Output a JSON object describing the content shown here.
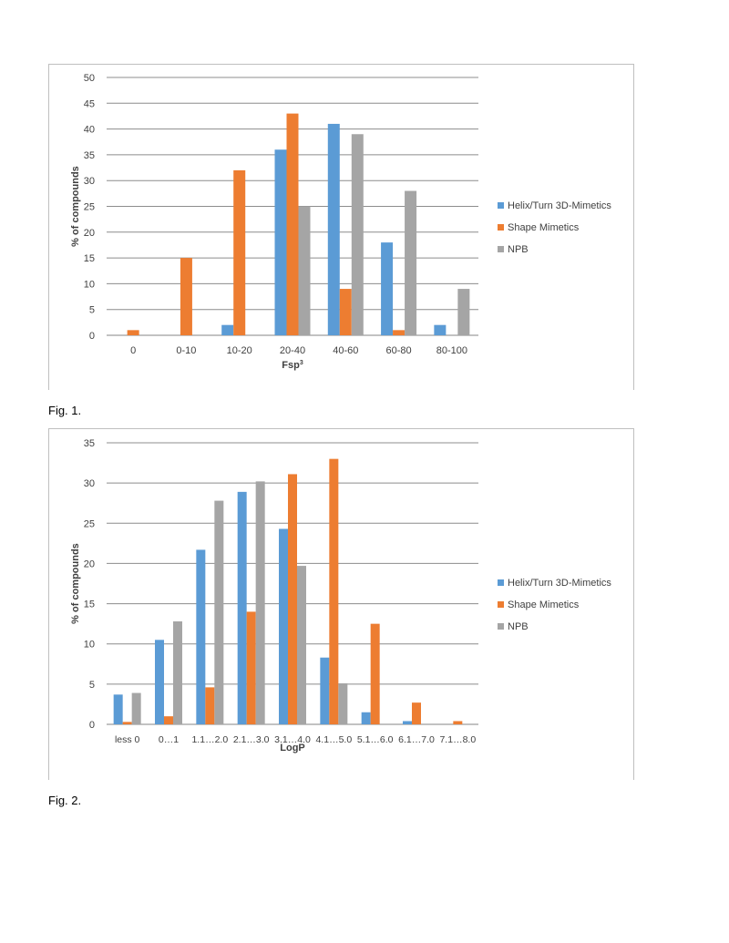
{
  "chart_data": [
    {
      "type": "bar",
      "categories": [
        "0",
        "0-10",
        "10-20",
        "20-40",
        "40-60",
        "60-80",
        "80-100"
      ],
      "series": [
        {
          "name": "Helix/Turn 3D-Mimetics",
          "values": [
            0,
            0,
            2,
            36,
            41,
            18,
            2
          ]
        },
        {
          "name": "Shape Mimetics",
          "values": [
            1,
            15,
            32,
            43,
            9,
            1,
            0
          ]
        },
        {
          "name": "NPB",
          "values": [
            0,
            0,
            0,
            25,
            39,
            28,
            9
          ]
        }
      ],
      "ylabel": "% of compounds",
      "xlabel": "Fsp",
      "xlabel_sup": "3",
      "ylim": [
        0,
        50
      ],
      "yticks": [
        "0",
        "5",
        "10",
        "15",
        "20",
        "25",
        "30",
        "35",
        "40",
        "45",
        "50"
      ],
      "legend": "right",
      "grid": true
    },
    {
      "type": "bar",
      "categories": [
        "less 0",
        "0…1",
        "1.1…2.0",
        "2.1…3.0",
        "3.1…4.0",
        "4.1…5.0",
        "5.1…6.0",
        "6.1…7.0",
        "7.1…8.0"
      ],
      "series": [
        {
          "name": "Helix/Turn 3D-Mimetics",
          "values": [
            3.7,
            10.5,
            21.7,
            28.9,
            24.3,
            8.3,
            1.5,
            0.4,
            0
          ]
        },
        {
          "name": "Shape Mimetics",
          "values": [
            0.3,
            1,
            4.6,
            14,
            31.1,
            33,
            12.5,
            2.7,
            0.4
          ]
        },
        {
          "name": "NPB",
          "values": [
            3.9,
            12.8,
            27.8,
            30.2,
            19.7,
            5.1,
            0,
            0,
            0
          ]
        }
      ],
      "ylabel": "% of compounds",
      "xlabel": "LogP",
      "ylim": [
        0,
        35
      ],
      "yticks": [
        "0",
        "5",
        "10",
        "15",
        "20",
        "25",
        "30",
        "35"
      ],
      "legend": "right",
      "grid": true
    }
  ],
  "colors": {
    "series": [
      "#5b9bd5",
      "#ed7d31",
      "#a5a5a5"
    ],
    "grid": "#868686"
  },
  "captions": {
    "fig1": "Fig. 1.",
    "fig2": "Fig. 2."
  }
}
